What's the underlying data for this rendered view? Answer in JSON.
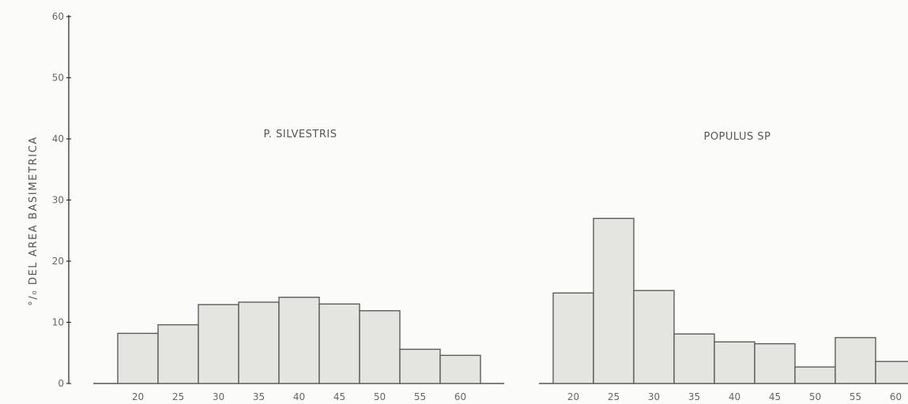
{
  "chart_data": {
    "type": "bar",
    "ylabel": "°/₀ DEL AREA BASIMETRICA",
    "ylim": [
      0,
      60
    ],
    "yticks": [
      0,
      10,
      20,
      30,
      40,
      50,
      60
    ],
    "grid": false,
    "panels": [
      {
        "title": "P. SILVESTRIS",
        "categories": [
          "20",
          "25",
          "30",
          "35",
          "40",
          "45",
          "50",
          "55",
          "60"
        ],
        "values": [
          8.2,
          9.6,
          12.9,
          13.3,
          14.1,
          13.0,
          11.9,
          5.6,
          4.6
        ]
      },
      {
        "title": "POPULUS SP",
        "categories": [
          "20",
          "25",
          "30",
          "35",
          "40",
          "45",
          "50",
          "55",
          "60"
        ],
        "values": [
          14.8,
          27.0,
          15.2,
          8.1,
          6.8,
          6.5,
          2.7,
          7.5,
          3.6
        ]
      }
    ],
    "colors": {
      "bar_fill": "#e4e4e1",
      "bar_stroke": "#5c5c5c",
      "axis": "#333333",
      "text": "#666666"
    }
  }
}
